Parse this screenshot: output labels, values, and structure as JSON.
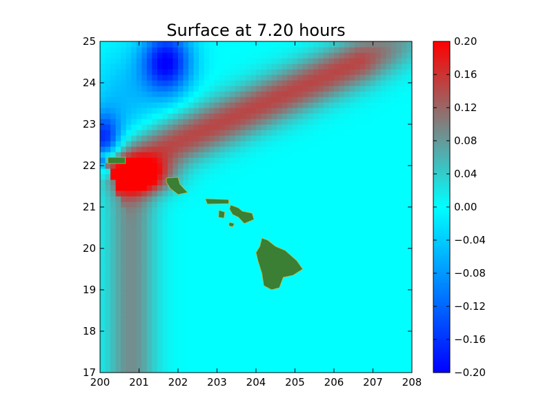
{
  "chart_data": {
    "type": "heatmap",
    "title": "Surface at 7.20 hours",
    "xlabel": "",
    "ylabel": "",
    "xlim": [
      200,
      208
    ],
    "ylim": [
      17,
      25
    ],
    "xticks": [
      "200",
      "201",
      "202",
      "203",
      "204",
      "205",
      "206",
      "207",
      "208"
    ],
    "yticks": [
      "17",
      "18",
      "19",
      "20",
      "21",
      "22",
      "23",
      "24",
      "25"
    ],
    "colorbar": {
      "range": [
        -0.2,
        0.2
      ],
      "ticks": [
        "0.20",
        "0.16",
        "0.12",
        "0.08",
        "0.04",
        "0.00",
        "−0.04",
        "−0.08",
        "−0.12",
        "−0.16",
        "−0.20"
      ],
      "tick_values": [
        0.2,
        0.16,
        0.12,
        0.08,
        0.04,
        0.0,
        -0.04,
        -0.08,
        -0.12,
        -0.16,
        -0.2
      ],
      "colors": [
        "#0000ff",
        "#00ffff",
        "#808080",
        "#ff0000"
      ]
    },
    "field_features": [
      {
        "kind": "trough",
        "center": [
          201.6,
          24.5
        ],
        "value": -0.2
      },
      {
        "kind": "trough",
        "center": [
          200.15,
          22.5
        ],
        "value": -0.16
      },
      {
        "kind": "crest",
        "from": [
          200.6,
          22.0
        ],
        "to": [
          207.8,
          25.0
        ],
        "value": 0.14
      },
      {
        "kind": "crest",
        "center": [
          201.0,
          21.7
        ],
        "value": 0.2
      },
      {
        "kind": "ridge",
        "from": [
          200.8,
          21.0
        ],
        "to": [
          200.8,
          17.0
        ],
        "value": 0.09
      }
    ],
    "land_color": "#3a7f33",
    "islands": [
      {
        "name": "Niihau/Kauai block",
        "points": [
          [
            200.2,
            22.2
          ],
          [
            200.65,
            22.2
          ],
          [
            200.65,
            22.05
          ],
          [
            200.2,
            22.05
          ]
        ]
      },
      {
        "name": "Oahu",
        "points": [
          [
            201.7,
            21.7
          ],
          [
            202.0,
            21.72
          ],
          [
            202.05,
            21.55
          ],
          [
            202.25,
            21.35
          ],
          [
            202.0,
            21.3
          ],
          [
            201.8,
            21.45
          ],
          [
            201.7,
            21.6
          ]
        ]
      },
      {
        "name": "Molokai",
        "points": [
          [
            202.7,
            21.2
          ],
          [
            203.3,
            21.18
          ],
          [
            203.3,
            21.08
          ],
          [
            202.75,
            21.07
          ]
        ]
      },
      {
        "name": "Lanai",
        "points": [
          [
            203.05,
            20.92
          ],
          [
            203.2,
            20.88
          ],
          [
            203.18,
            20.73
          ],
          [
            203.04,
            20.75
          ]
        ]
      },
      {
        "name": "Maui",
        "points": [
          [
            203.35,
            21.05
          ],
          [
            203.55,
            20.98
          ],
          [
            203.65,
            20.9
          ],
          [
            203.9,
            20.85
          ],
          [
            203.95,
            20.7
          ],
          [
            203.7,
            20.6
          ],
          [
            203.55,
            20.75
          ],
          [
            203.4,
            20.82
          ],
          [
            203.32,
            20.95
          ]
        ]
      },
      {
        "name": "Kahoolawe",
        "points": [
          [
            203.32,
            20.63
          ],
          [
            203.45,
            20.6
          ],
          [
            203.4,
            20.52
          ],
          [
            203.3,
            20.55
          ]
        ]
      },
      {
        "name": "Hawaii",
        "points": [
          [
            204.15,
            20.25
          ],
          [
            204.3,
            20.2
          ],
          [
            204.5,
            20.05
          ],
          [
            204.75,
            19.95
          ],
          [
            205.05,
            19.7
          ],
          [
            205.2,
            19.5
          ],
          [
            204.95,
            19.35
          ],
          [
            204.7,
            19.3
          ],
          [
            204.6,
            19.05
          ],
          [
            204.4,
            19.0
          ],
          [
            204.2,
            19.1
          ],
          [
            204.15,
            19.4
          ],
          [
            204.05,
            19.7
          ],
          [
            204.0,
            19.9
          ],
          [
            204.1,
            20.05
          ]
        ]
      }
    ]
  }
}
